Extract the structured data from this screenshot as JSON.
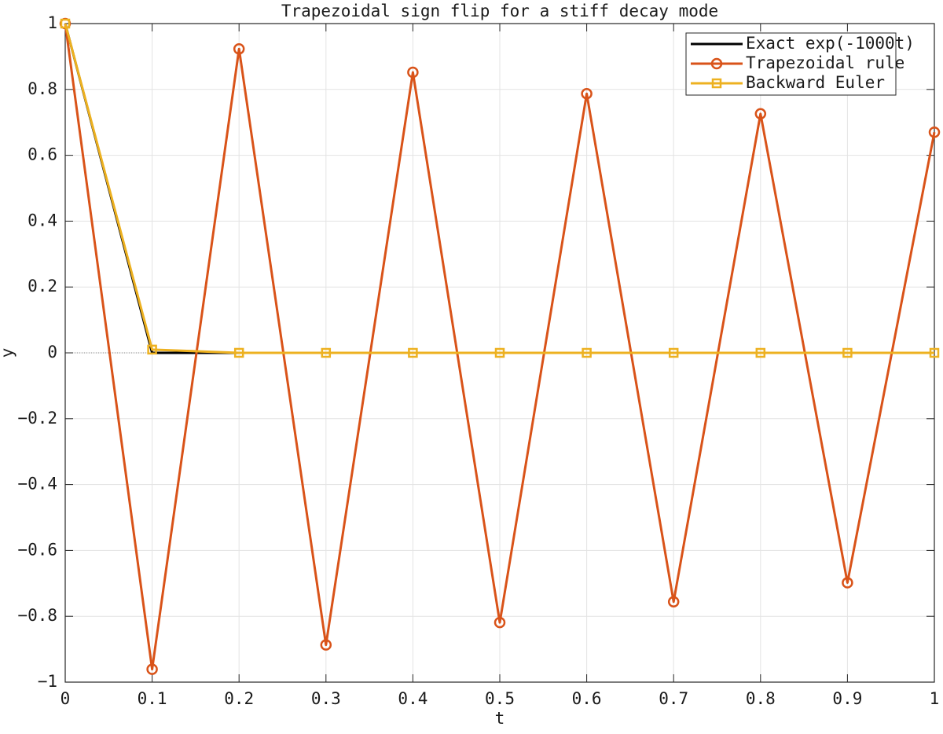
{
  "chart_data": {
    "type": "line",
    "title": "Trapezoidal sign flip for a stiff decay mode",
    "xlabel": "t",
    "ylabel": "y",
    "x": [
      0,
      0.1,
      0.2,
      0.3,
      0.4,
      0.5,
      0.6,
      0.7,
      0.8,
      0.9,
      1
    ],
    "series": [
      {
        "name": "Exact exp(-1000t)",
        "color": "#000000",
        "marker": "none",
        "values": [
          1,
          0,
          0,
          0,
          0,
          0,
          0,
          0,
          0,
          0,
          0
        ]
      },
      {
        "name": "Trapezoidal rule",
        "color": "#d95319",
        "marker": "circle",
        "values": [
          1,
          -0.961,
          0.923,
          -0.887,
          0.852,
          -0.819,
          0.787,
          -0.756,
          0.726,
          -0.698,
          0.67
        ]
      },
      {
        "name": "Backward Euler",
        "color": "#edb120",
        "marker": "square",
        "values": [
          1,
          0.0099,
          0.0001,
          0,
          0,
          0,
          0,
          0,
          0,
          0,
          0
        ]
      }
    ],
    "xlim": [
      0,
      1
    ],
    "ylim": [
      -1,
      1
    ],
    "xticks": [
      0,
      0.1,
      0.2,
      0.3,
      0.4,
      0.5,
      0.6,
      0.7,
      0.8,
      0.9,
      1
    ],
    "yticks": [
      {
        "value": -1,
        "label": "−1"
      },
      {
        "value": -0.8,
        "label": "−0.8"
      },
      {
        "value": -0.6,
        "label": "−0.6"
      },
      {
        "value": -0.4,
        "label": "−0.4"
      },
      {
        "value": -0.2,
        "label": "−0.2"
      },
      0,
      0.2,
      0.4,
      0.6,
      0.8,
      1
    ],
    "grid": true,
    "zero_line": true,
    "legend": "upper right"
  }
}
